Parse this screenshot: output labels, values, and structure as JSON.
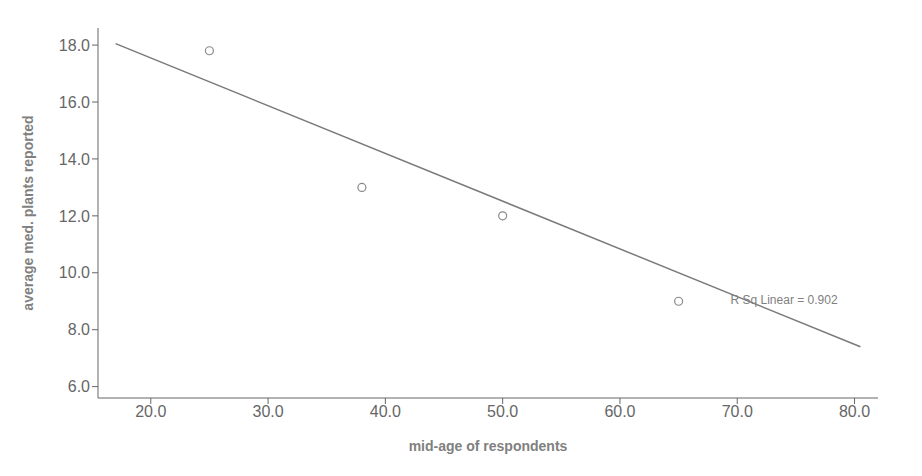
{
  "chart_data": {
    "type": "scatter",
    "xlabel": "mid-age of respondents",
    "ylabel": "average med. plants reported",
    "series": [
      {
        "type": "scatter",
        "x": [
          25,
          38,
          50,
          65
        ],
        "values": [
          17.8,
          13.0,
          12.0,
          9.0
        ],
        "color": "#888888",
        "marker": "circle"
      },
      {
        "type": "line",
        "x": [
          17.0,
          80.5
        ],
        "values": [
          18.05,
          7.4
        ],
        "color": "#7a7a7a",
        "line_style": "solid"
      }
    ],
    "annotations": [
      {
        "text": "R Sq Linear = 0.902",
        "x": 69.0,
        "y": 9.05
      }
    ],
    "xlim": [
      15.5,
      82.0
    ],
    "ylim": [
      5.6,
      18.6
    ],
    "xticks": [
      {
        "value": 20,
        "label": "20.0"
      },
      {
        "value": 30,
        "label": "30.0"
      },
      {
        "value": 40,
        "label": "40.0"
      },
      {
        "value": 50,
        "label": "50.0"
      },
      {
        "value": 60,
        "label": "60.0"
      },
      {
        "value": 70,
        "label": "70.0"
      },
      {
        "value": 80,
        "label": "80.0"
      }
    ],
    "yticks": [
      {
        "value": 6,
        "label": "6.0"
      },
      {
        "value": 8,
        "label": "8.0"
      },
      {
        "value": 10,
        "label": "10.0"
      },
      {
        "value": 12,
        "label": "12.0"
      },
      {
        "value": 14,
        "label": "14.0"
      },
      {
        "value": 16,
        "label": "16.0"
      },
      {
        "value": 18,
        "label": "18.0"
      }
    ],
    "grid": false
  }
}
